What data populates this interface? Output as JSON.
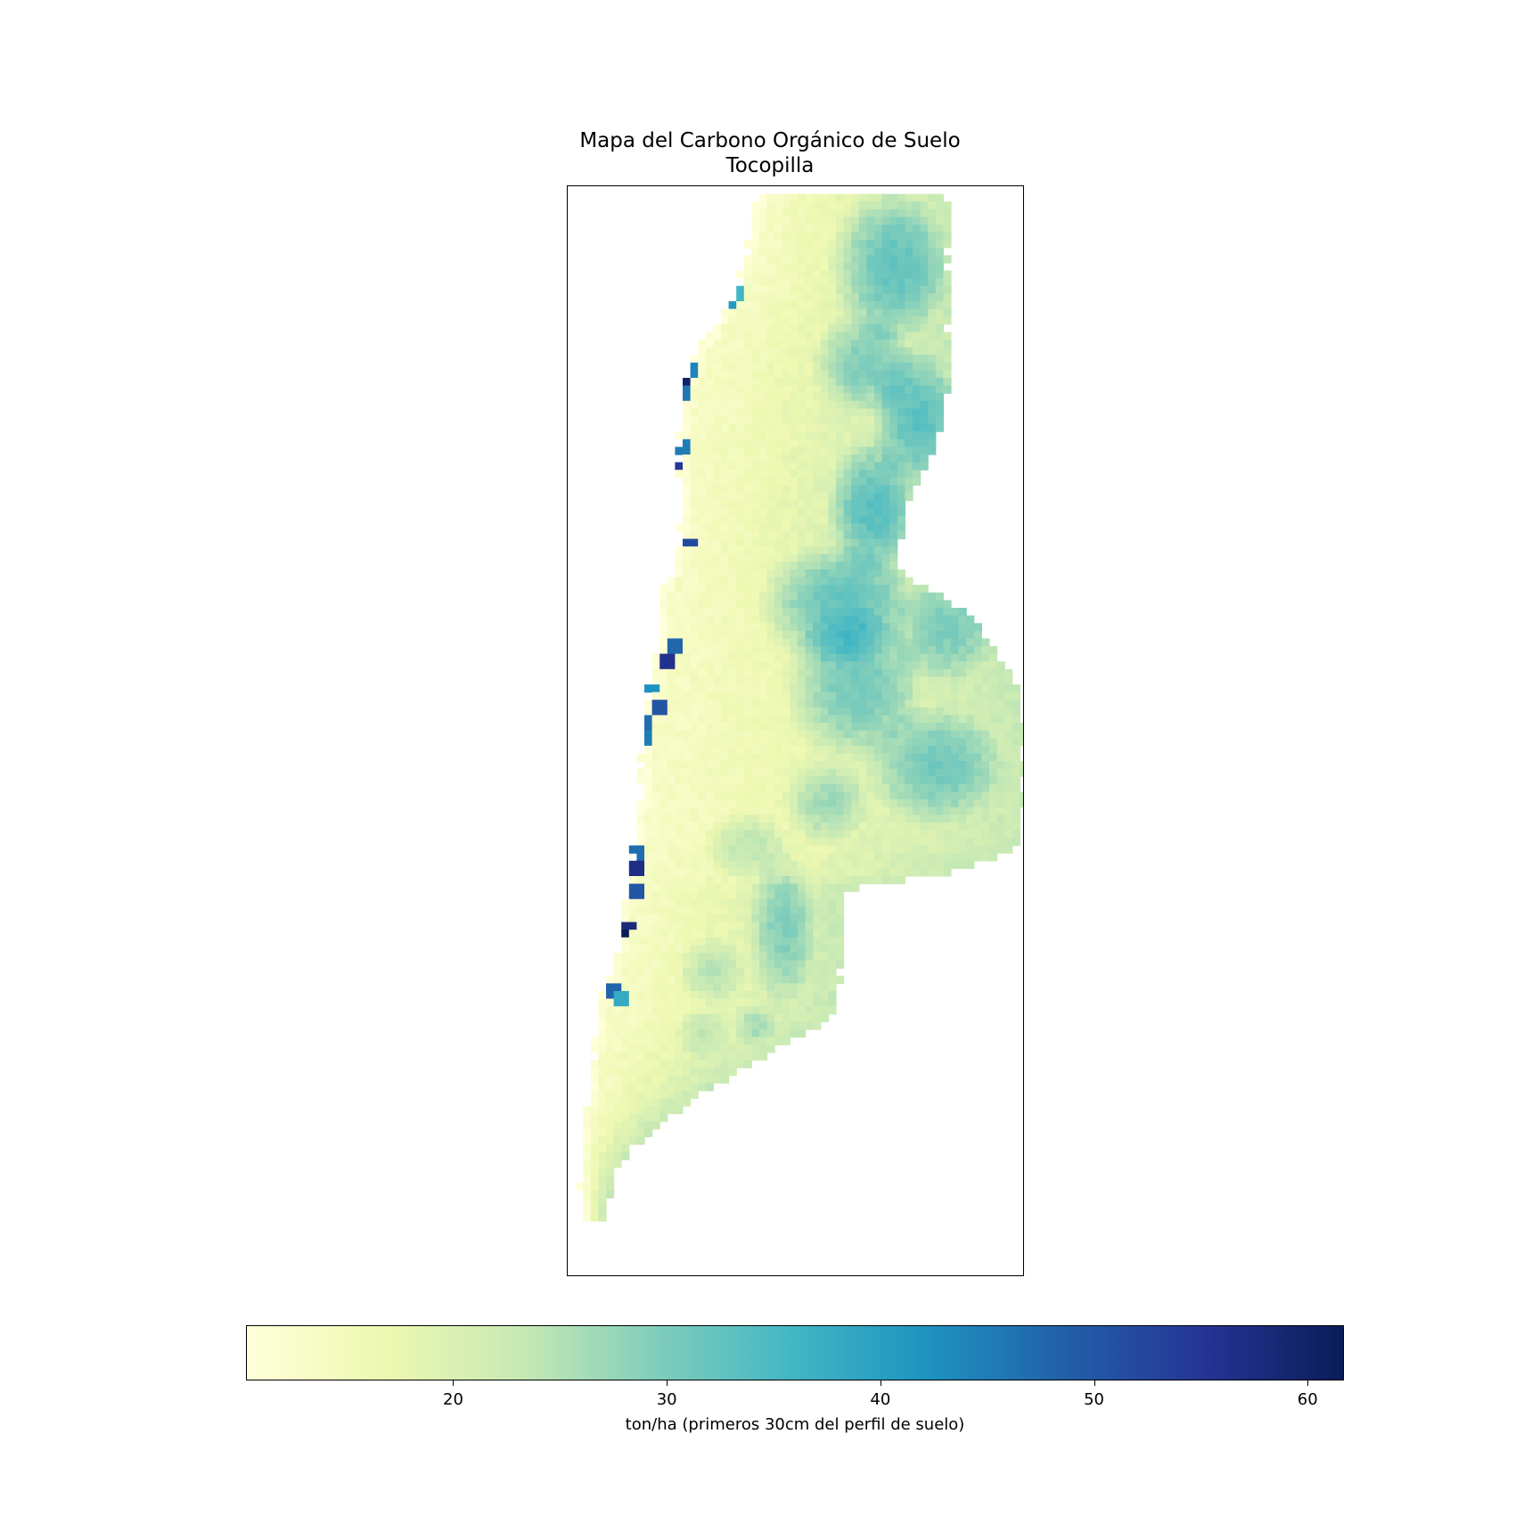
{
  "title_line1": "Mapa del Carbono Orgánico de Suelo",
  "title_line2": "Tocopilla",
  "colorbar": {
    "label": "ton/ha (primeros 30cm del perfil de suelo)",
    "min": 10.3,
    "max": 61.7,
    "ticks": [
      {
        "value": 20,
        "label": "20"
      },
      {
        "value": 30,
        "label": "30"
      },
      {
        "value": 40,
        "label": "40"
      },
      {
        "value": 50,
        "label": "50"
      },
      {
        "value": 60,
        "label": "60"
      }
    ],
    "colormap": [
      "#ffffd9",
      "#edf8b1",
      "#c7e9b4",
      "#7fcdbb",
      "#41b6c4",
      "#1d91c0",
      "#225ea8",
      "#253494",
      "#081d58"
    ]
  },
  "chart_data": {
    "type": "heatmap",
    "title": "Mapa del Carbono Orgánico de Suelo\nTocopilla",
    "colorbar_label": "ton/ha (primeros 30cm del perfil de suelo)",
    "value_range": [
      10.3,
      61.7
    ],
    "colormap": "YlGnBu",
    "value_summary": {
      "coastal_strip_typical": 14,
      "western_interior_typical": 20,
      "eastern_interior_typical": 27,
      "coastal_hotspots_range": [
        38,
        61
      ]
    }
  }
}
